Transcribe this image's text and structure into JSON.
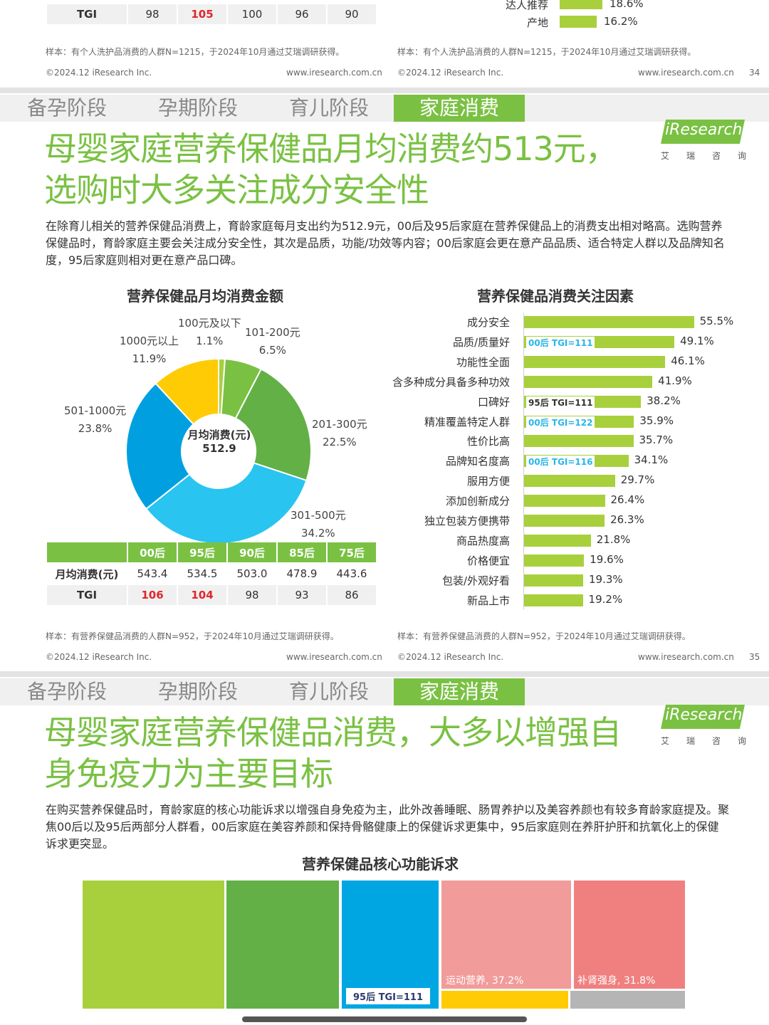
{
  "top_section": {
    "table_row": {
      "label": "TGI",
      "values": [
        "98",
        "105",
        "100",
        "96",
        "90"
      ],
      "highlight": [
        false,
        true,
        false,
        false,
        false
      ]
    },
    "bars": [
      {
        "label": "达人推荐",
        "value": "18.6%"
      },
      {
        "label": "产地",
        "value": "16.2%"
      }
    ],
    "sample_left": "样本：有个人洗护品消费的人群N=1215，于2024年10月通过艾瑞调研获得。",
    "sample_right": "样本：有个人洗护品消费的人群N=1215，于2024年10月通过艾瑞调研获得。",
    "copyright_left": "©2024.12 iResearch Inc.",
    "url_left": "www.iresearch.com.cn",
    "copyright_right": "©2024.12 iResearch Inc.",
    "url_right": "www.iresearch.com.cn",
    "page": "34"
  },
  "tabs": [
    "备孕阶段",
    "孕期阶段",
    "育儿阶段",
    "家庭消费"
  ],
  "logo": {
    "text": "iResearch",
    "sub": "艾瑞咨询"
  },
  "slide1": {
    "title_line1": "母婴家庭营养保健品月均消费约513元，",
    "title_line2": "选购时大多关注成分安全性",
    "paragraph": "在除育儿相关的营养保健品消费上，育龄家庭每月支出约为512.9元，00后及95后家庭在营养保健品上的消费支出相对略高。选购营养保健品时，育龄家庭主要会关注成分安全性，其次是品质，功能/功效等内容；00后家庭会更在意产品品质、适合特定人群以及品牌知名度，95后家庭则相对更在意产品口碑。",
    "pie_title": "营养保健品月均消费金额",
    "pie_center_label": "月均消费(元)",
    "pie_center_value": "512.9",
    "table": {
      "headers": [
        "00后",
        "95后",
        "90后",
        "85后",
        "75后"
      ],
      "rows": [
        {
          "label": "月均消费(元)",
          "values": [
            "543.4",
            "534.5",
            "503.0",
            "478.9",
            "443.6"
          ],
          "red": [
            false,
            false,
            false,
            false,
            false
          ]
        },
        {
          "label": "TGI",
          "values": [
            "106",
            "104",
            "98",
            "93",
            "86"
          ],
          "red": [
            true,
            true,
            false,
            false,
            false
          ]
        }
      ]
    },
    "bar_title": "营养保健品消费关注因素",
    "sample_left": "样本：有营养保健品消费的人群N=952，于2024年10月通过艾瑞调研获得。",
    "sample_right": "样本：有营养保健品消费的人群N=952，于2024年10月通过艾瑞调研获得。",
    "copyright_left": "©2024.12 iResearch Inc.",
    "url_left": "www.iresearch.com.cn",
    "copyright_right": "©2024.12 iResearch Inc.",
    "url_right": "www.iresearch.com.cn",
    "page": "35"
  },
  "slide2": {
    "title_line1": "母婴家庭营养保健品消费，大多以增强自",
    "title_line2": "身免疫力为主要目标",
    "paragraph": "在购买营养保健品时，育龄家庭的核心功能诉求以增强自身免疫为主，此外改善睡眠、肠胃养护以及美容养颜也有较多育龄家庭提及。聚焦00后以及95后两部分人群看，00后家庭在美容养颜和保持骨骼健康上的保健诉求更集中，95后家庭则在养肝护肝和抗氧化上的保健诉求更突显。",
    "treemap_title": "营养保健品核心功能诉求",
    "treemap_labels": {
      "sport": "运动营养, 37.2%",
      "nourish": "补肾强身, 31.8%",
      "tgi": "95后 TGI=111"
    }
  },
  "chart_data": [
    {
      "type": "pie",
      "title": "营养保健品月均消费金额",
      "categories": [
        "100元及以下",
        "101-200元",
        "201-300元",
        "301-500元",
        "501-1000元",
        "1000元以上"
      ],
      "values": [
        1.1,
        6.5,
        22.5,
        34.2,
        23.8,
        11.9
      ],
      "labels": [
        "1.1%",
        "6.5%",
        "22.5%",
        "34.2%",
        "23.8%",
        "11.9%"
      ],
      "colors": [
        "#a8d03c",
        "#7ac143",
        "#62b046",
        "#29c4f0",
        "#00a0e0",
        "#ffcb05"
      ]
    },
    {
      "type": "bar",
      "title": "营养保健品消费关注因素",
      "categories": [
        "成分安全",
        "品质/质量好",
        "功能性全面",
        "含多种成分具备多种功效",
        "口碑好",
        "精准覆盖特定人群",
        "性价比高",
        "品牌知名度高",
        "服用方便",
        "添加创新成分",
        "独立包装方便携带",
        "商品热度高",
        "价格便宜",
        "包装/外观好看",
        "新品上市"
      ],
      "values": [
        55.5,
        49.1,
        46.1,
        41.9,
        38.2,
        35.9,
        35.7,
        34.1,
        29.7,
        26.4,
        26.3,
        21.8,
        19.6,
        19.3,
        19.2
      ],
      "labels": [
        "55.5%",
        "49.1%",
        "46.1%",
        "41.9%",
        "38.2%",
        "35.9%",
        "35.7%",
        "34.1%",
        "29.7%",
        "26.4%",
        "26.3%",
        "21.8%",
        "19.6%",
        "19.3%",
        "19.2%"
      ],
      "annotations": [
        {
          "index": 1,
          "text": "00后 TGI=111",
          "color": "#29b6e8"
        },
        {
          "index": 4,
          "text": "95后 TGI=111",
          "color": "#333333"
        },
        {
          "index": 5,
          "text": "00后 TGI=122",
          "color": "#29b6e8"
        },
        {
          "index": 7,
          "text": "00后 TGI=116",
          "color": "#29b6e8"
        }
      ]
    }
  ]
}
